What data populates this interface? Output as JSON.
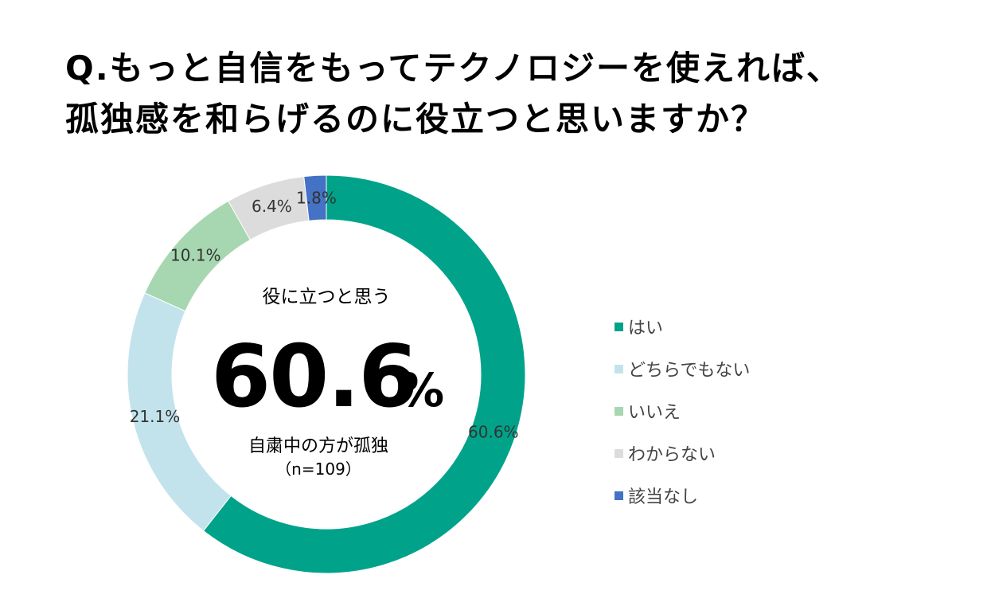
{
  "title_line1": "Q.もっと自信をもってテクノロジーを使えれば、",
  "title_line2": "孤独感を和らげるのに役立つと思いますか？",
  "center": {
    "label": "役に立つと思う",
    "value": "60.6",
    "unit": "%",
    "group": "自粛中の方が孤独",
    "n": "（n=109）"
  },
  "chart_data": {
    "type": "pie",
    "style": "donut",
    "categories": [
      "はい",
      "どちらでもない",
      "いいえ",
      "わからない",
      "該当なし"
    ],
    "values": [
      60.6,
      21.1,
      10.1,
      6.4,
      1.8
    ],
    "labels": [
      "60.6%",
      "21.1%",
      "10.1%",
      "6.4%",
      "1.8%"
    ],
    "colors": [
      "#00a38a",
      "#c3e3ec",
      "#a7d7b1",
      "#dcdcdc",
      "#4472c4"
    ],
    "legend_position": "right"
  }
}
